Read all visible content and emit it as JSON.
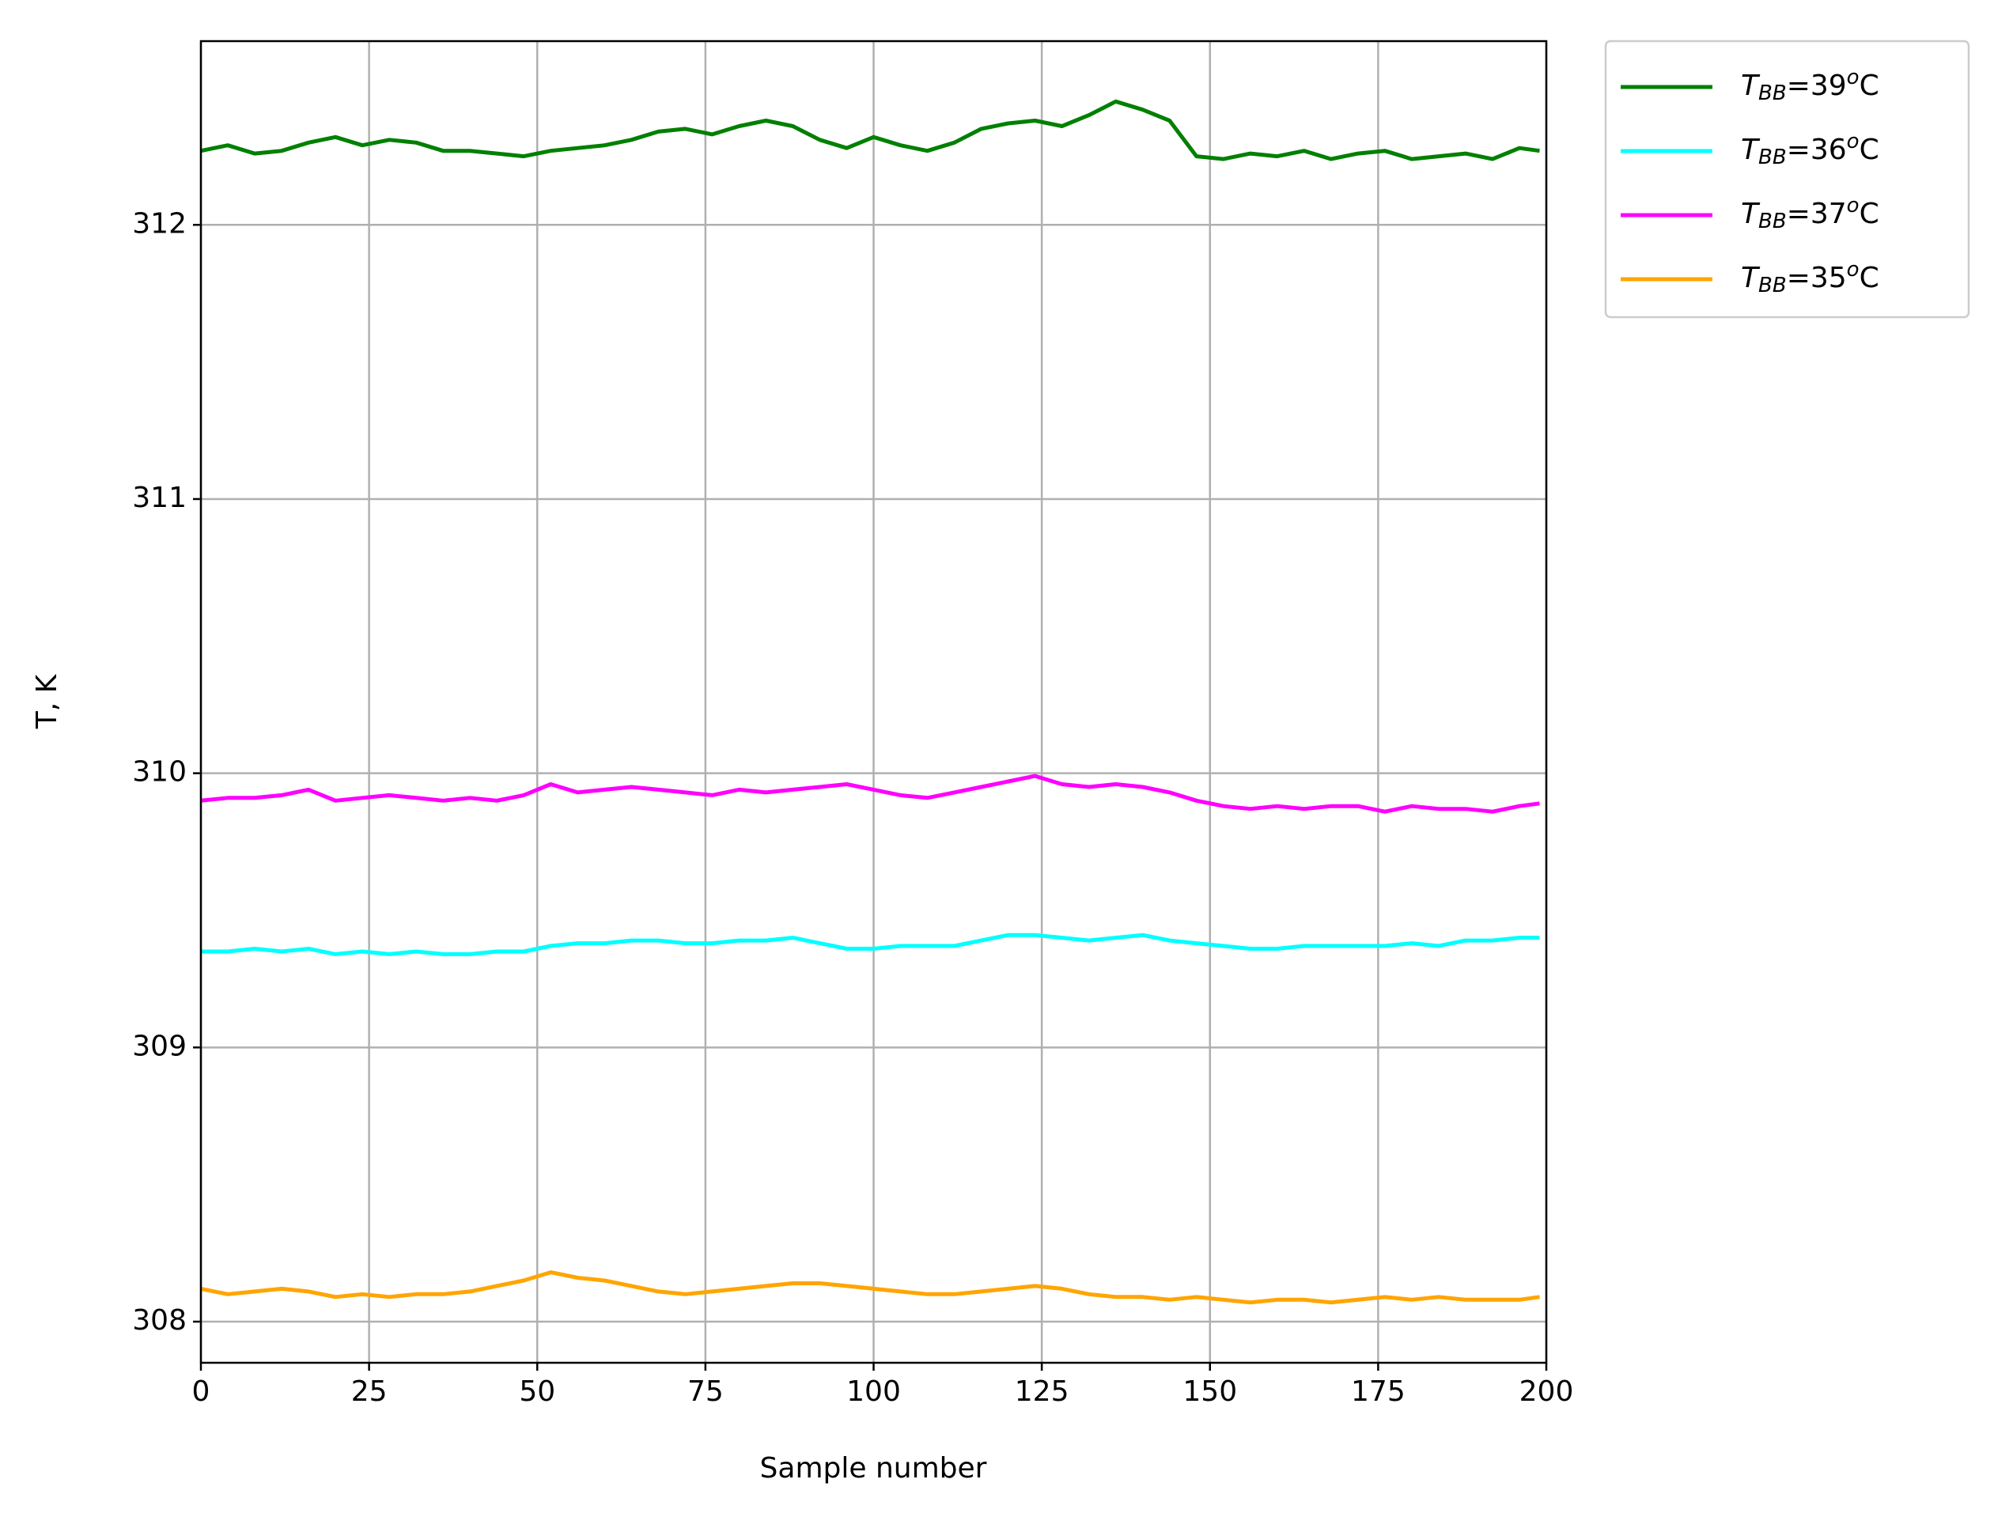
{
  "chart_data": {
    "type": "line",
    "x_label": "Sample number",
    "y_label": "T, K",
    "xlim": [
      0,
      200
    ],
    "xticks": [
      0,
      25,
      50,
      75,
      100,
      125,
      150,
      175,
      200
    ],
    "ylim": [
      307.85,
      312.67
    ],
    "yticks": [
      308,
      309,
      310,
      311,
      312
    ],
    "grid": true,
    "legend": "outside upper right",
    "x": [
      0,
      4,
      8,
      12,
      16,
      20,
      24,
      28,
      32,
      36,
      40,
      44,
      48,
      52,
      56,
      60,
      64,
      68,
      72,
      76,
      80,
      84,
      88,
      92,
      96,
      100,
      104,
      108,
      112,
      116,
      120,
      124,
      128,
      132,
      136,
      140,
      144,
      148,
      152,
      156,
      160,
      164,
      168,
      172,
      176,
      180,
      184,
      188,
      192,
      196,
      199
    ],
    "series": [
      {
        "name": "TBB=39oC",
        "color": "#008000",
        "values": [
          312.27,
          312.29,
          312.26,
          312.27,
          312.3,
          312.32,
          312.29,
          312.31,
          312.3,
          312.27,
          312.27,
          312.26,
          312.25,
          312.27,
          312.28,
          312.29,
          312.31,
          312.34,
          312.35,
          312.33,
          312.36,
          312.38,
          312.36,
          312.31,
          312.28,
          312.32,
          312.29,
          312.27,
          312.3,
          312.35,
          312.37,
          312.38,
          312.36,
          312.4,
          312.45,
          312.42,
          312.38,
          312.25,
          312.24,
          312.26,
          312.25,
          312.27,
          312.24,
          312.26,
          312.27,
          312.24,
          312.25,
          312.26,
          312.24,
          312.28,
          312.27
        ]
      },
      {
        "name": "TBB=36oC",
        "color": "#00ffff",
        "values": [
          309.35,
          309.35,
          309.36,
          309.35,
          309.36,
          309.34,
          309.35,
          309.34,
          309.35,
          309.34,
          309.34,
          309.35,
          309.35,
          309.37,
          309.38,
          309.38,
          309.39,
          309.39,
          309.38,
          309.38,
          309.39,
          309.39,
          309.4,
          309.38,
          309.36,
          309.36,
          309.37,
          309.37,
          309.37,
          309.39,
          309.41,
          309.41,
          309.4,
          309.39,
          309.4,
          309.41,
          309.39,
          309.38,
          309.37,
          309.36,
          309.36,
          309.37,
          309.37,
          309.37,
          309.37,
          309.38,
          309.37,
          309.39,
          309.39,
          309.4,
          309.4
        ]
      },
      {
        "name": "TBB=37oC",
        "color": "#ff00ff",
        "values": [
          309.9,
          309.91,
          309.91,
          309.92,
          309.94,
          309.9,
          309.91,
          309.92,
          309.91,
          309.9,
          309.91,
          309.9,
          309.92,
          309.96,
          309.93,
          309.94,
          309.95,
          309.94,
          309.93,
          309.92,
          309.94,
          309.93,
          309.94,
          309.95,
          309.96,
          309.94,
          309.92,
          309.91,
          309.93,
          309.95,
          309.97,
          309.99,
          309.96,
          309.95,
          309.96,
          309.95,
          309.93,
          309.9,
          309.88,
          309.87,
          309.88,
          309.87,
          309.88,
          309.88,
          309.86,
          309.88,
          309.87,
          309.87,
          309.86,
          309.88,
          309.89
        ]
      },
      {
        "name": "TBB=35oC",
        "color": "#ffa500",
        "values": [
          308.12,
          308.1,
          308.11,
          308.12,
          308.11,
          308.09,
          308.1,
          308.09,
          308.1,
          308.1,
          308.11,
          308.13,
          308.15,
          308.18,
          308.16,
          308.15,
          308.13,
          308.11,
          308.1,
          308.11,
          308.12,
          308.13,
          308.14,
          308.14,
          308.13,
          308.12,
          308.11,
          308.1,
          308.1,
          308.11,
          308.12,
          308.13,
          308.12,
          308.1,
          308.09,
          308.09,
          308.08,
          308.09,
          308.08,
          308.07,
          308.08,
          308.08,
          308.07,
          308.08,
          308.09,
          308.08,
          308.09,
          308.08,
          308.08,
          308.08,
          308.09
        ]
      }
    ]
  }
}
